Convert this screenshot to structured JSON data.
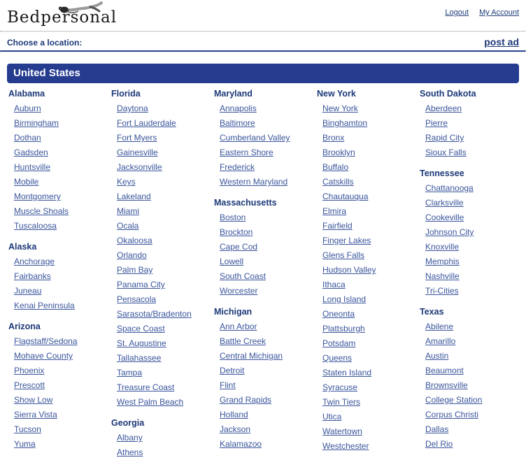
{
  "header": {
    "logo_text": "Bedpersonal",
    "logout_label": "Logout",
    "my_account_label": "My Account"
  },
  "toolbar": {
    "choose_location_label": "Choose a location:",
    "post_ad_label": "post ad"
  },
  "banner": {
    "title": "United States"
  },
  "colors": {
    "banner_bg": "#263c8f",
    "heading_text": "#1c3978",
    "link_text": "#3a559c",
    "rule_navy": "#2f4490",
    "rule_gray": "#cfcfcf"
  },
  "icons": {
    "logo_figure": "reclining-person-icon"
  },
  "columns": [
    [
      {
        "name": "Alabama",
        "cities": [
          "Auburn",
          "Birmingham",
          "Dothan",
          "Gadsden",
          "Huntsville",
          "Mobile",
          "Montgomery",
          "Muscle Shoals",
          "Tuscaloosa"
        ]
      },
      {
        "name": "Alaska",
        "cities": [
          "Anchorage",
          "Fairbanks",
          "Juneau",
          "Kenai Peninsula"
        ]
      },
      {
        "name": "Arizona",
        "cities": [
          "Flagstaff/Sedona",
          "Mohave County",
          "Phoenix",
          "Prescott",
          "Show Low",
          "Sierra Vista",
          "Tucson",
          "Yuma"
        ]
      }
    ],
    [
      {
        "name": "Florida",
        "cities": [
          "Daytona",
          "Fort Lauderdale",
          "Fort Myers",
          "Gainesville",
          "Jacksonville",
          "Keys",
          "Lakeland",
          "Miami",
          "Ocala",
          "Okaloosa",
          "Orlando",
          "Palm Bay",
          "Panama City",
          "Pensacola",
          "Sarasota/Bradenton",
          "Space Coast",
          "St. Augustine",
          "Tallahassee",
          "Tampa",
          "Treasure Coast",
          "West Palm Beach"
        ]
      },
      {
        "name": "Georgia",
        "cities": [
          "Albany",
          "Athens"
        ]
      }
    ],
    [
      {
        "name": "Maryland",
        "cities": [
          "Annapolis",
          "Baltimore",
          "Cumberland Valley",
          "Eastern Shore",
          "Frederick",
          "Western Maryland"
        ]
      },
      {
        "name": "Massachusetts",
        "cities": [
          "Boston",
          "Brockton",
          "Cape Cod",
          "Lowell",
          "South Coast",
          "Worcester"
        ]
      },
      {
        "name": "Michigan",
        "cities": [
          "Ann Arbor",
          "Battle Creek",
          "Central Michigan",
          "Detroit",
          "Flint",
          "Grand Rapids",
          "Holland",
          "Jackson",
          "Kalamazoo"
        ]
      }
    ],
    [
      {
        "name": "New York",
        "cities": [
          "New York",
          "Binghamton",
          "Bronx",
          "Brooklyn",
          "Buffalo",
          "Catskills",
          "Chautauqua",
          "Elmira",
          "Fairfield",
          "Finger Lakes",
          "Glens Falls",
          "Hudson Valley",
          "Ithaca",
          "Long Island",
          "Oneonta",
          "Plattsburgh",
          "Potsdam",
          "Queens",
          "Staten Island",
          "Syracuse",
          "Twin Tiers",
          "Utica",
          "Watertown",
          "Westchester"
        ]
      }
    ],
    [
      {
        "name": "South Dakota",
        "cities": [
          "Aberdeen",
          "Pierre",
          "Rapid City",
          "Sioux Falls"
        ]
      },
      {
        "name": "Tennessee",
        "cities": [
          "Chattanooga",
          "Clarksville",
          "Cookeville",
          "Johnson City",
          "Knoxville",
          "Memphis",
          "Nashville",
          "Tri-Cities"
        ]
      },
      {
        "name": "Texas",
        "cities": [
          "Abilene",
          "Amarillo",
          "Austin",
          "Beaumont",
          "Brownsville",
          "College Station",
          "Corpus Christi",
          "Dallas",
          "Del Rio"
        ]
      }
    ]
  ]
}
